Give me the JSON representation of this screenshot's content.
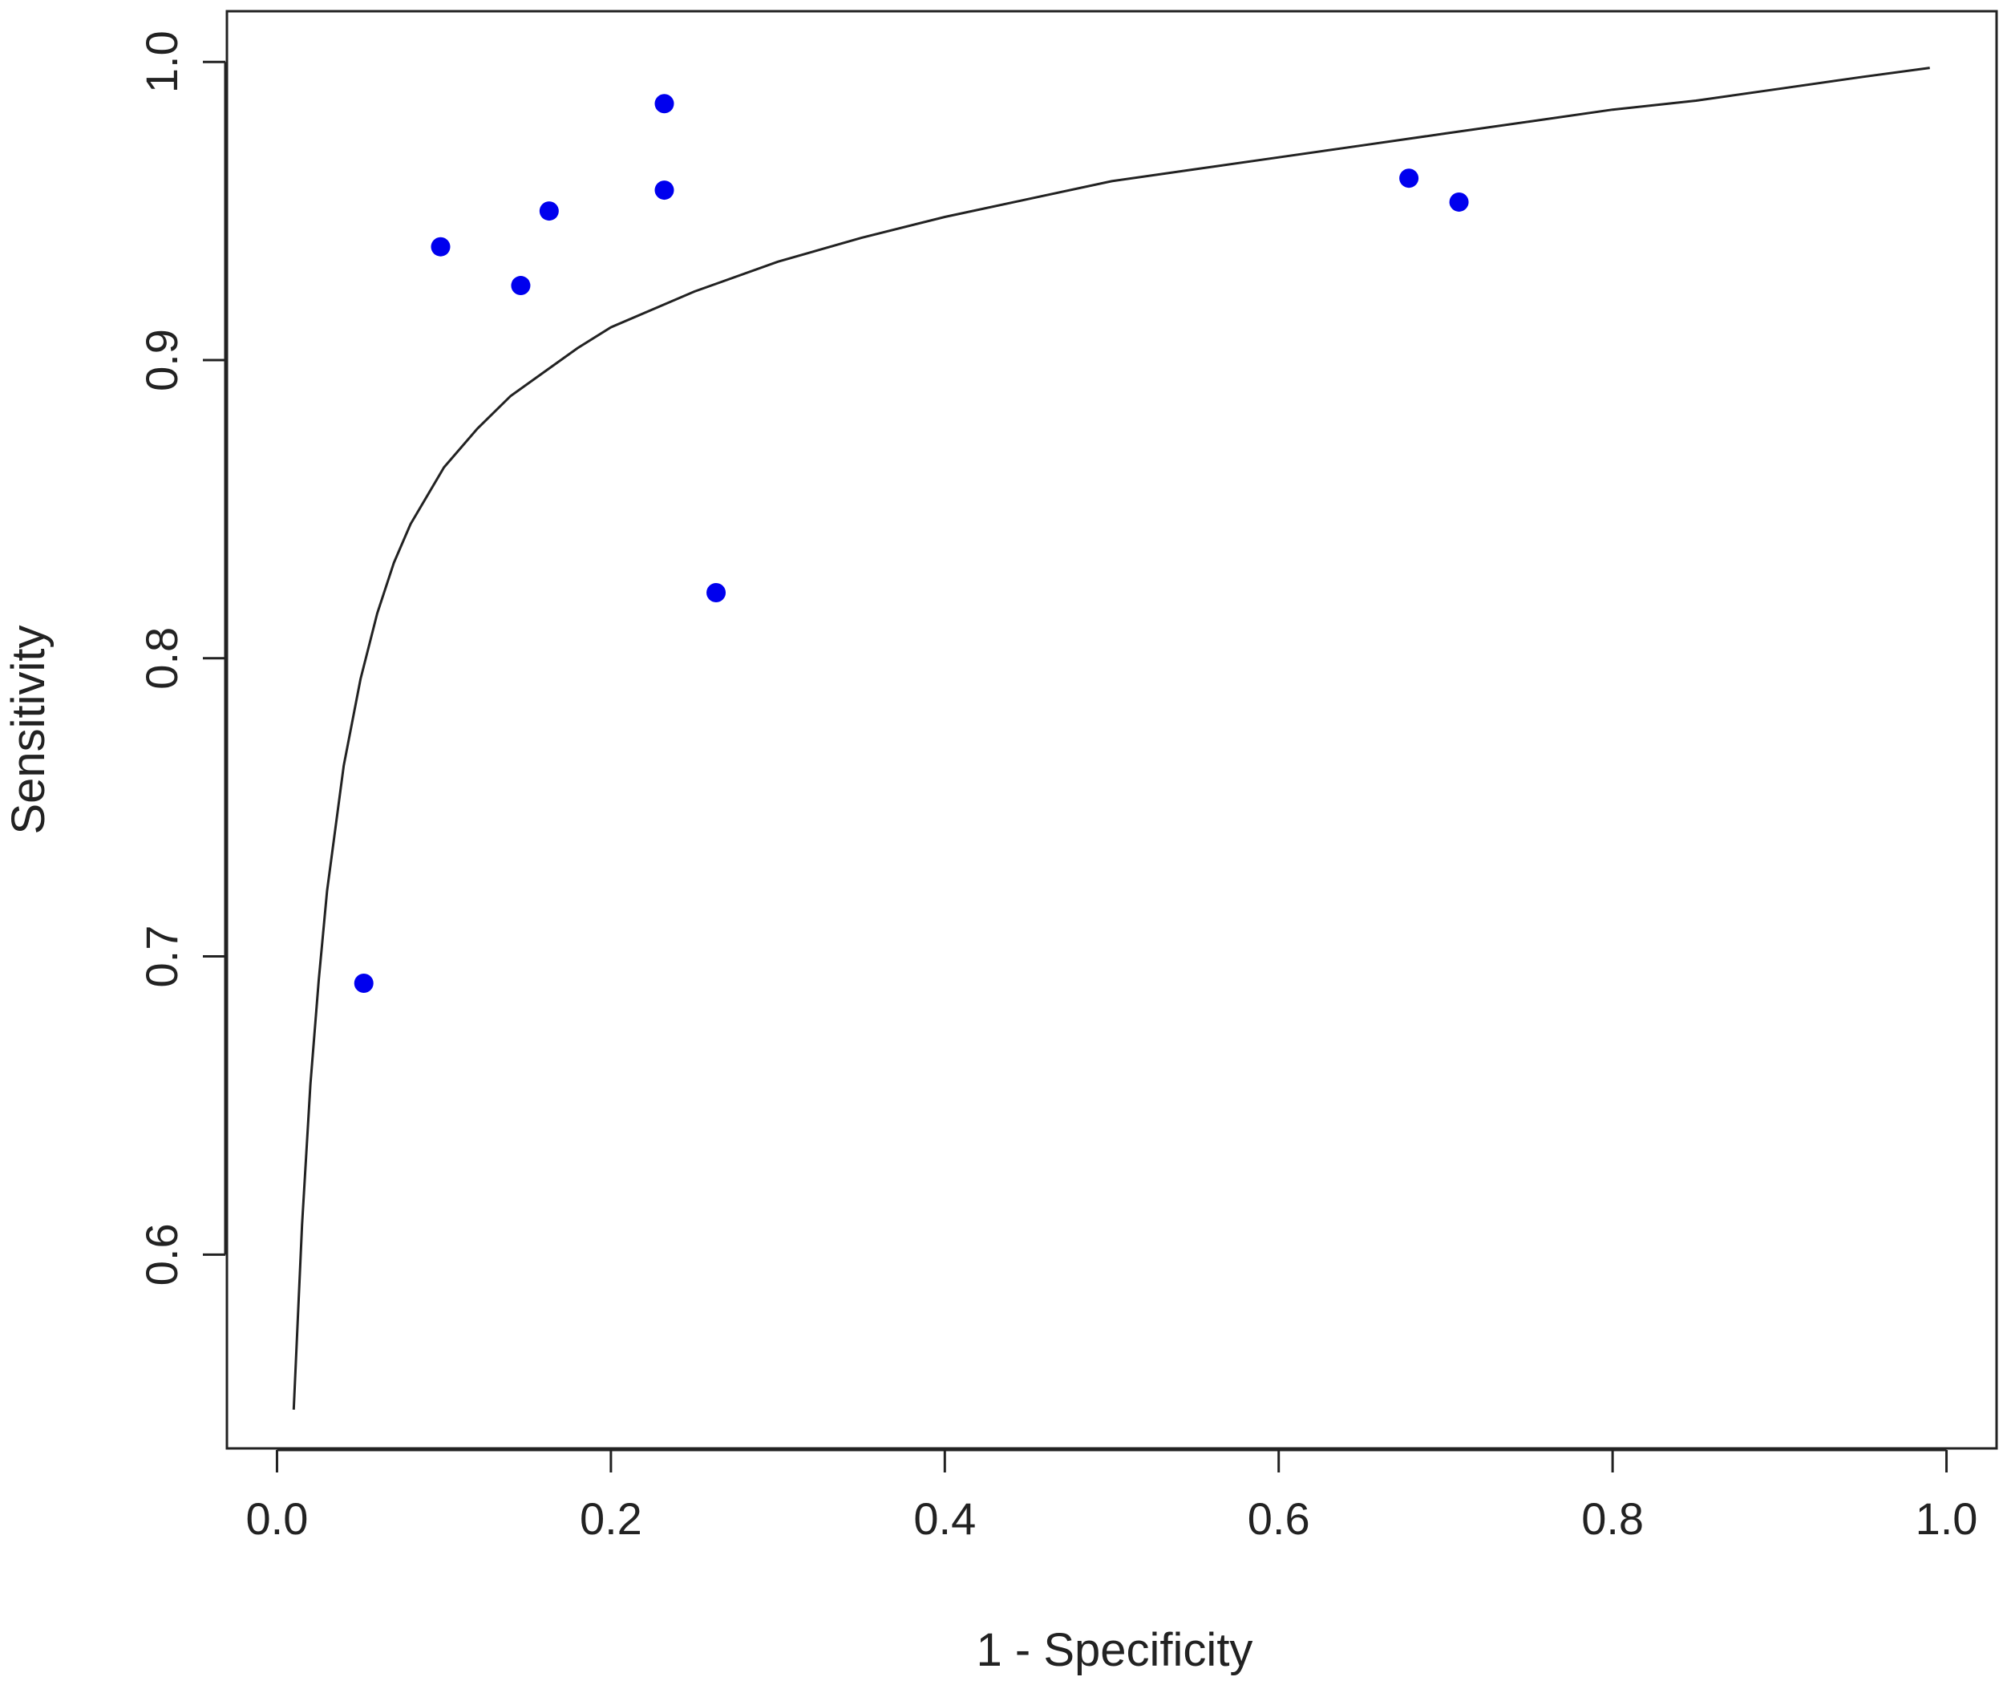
{
  "chart_data": {
    "type": "scatter",
    "title": "",
    "xlabel": "1 - Specificity",
    "ylabel": "Sensitivity",
    "xlim": [
      -0.03,
      1.03
    ],
    "ylim": [
      0.535,
      1.017
    ],
    "grid": false,
    "legend": "none",
    "x_ticks": [
      {
        "value": 0.0,
        "label": "0.0"
      },
      {
        "value": 0.2,
        "label": "0.2"
      },
      {
        "value": 0.4,
        "label": "0.4"
      },
      {
        "value": 0.6,
        "label": "0.6"
      },
      {
        "value": 0.8,
        "label": "0.8"
      },
      {
        "value": 1.0,
        "label": "1.0"
      }
    ],
    "y_ticks": [
      {
        "value": 0.6,
        "label": "0.6"
      },
      {
        "value": 0.7,
        "label": "0.7"
      },
      {
        "value": 0.8,
        "label": "0.8"
      },
      {
        "value": 0.9,
        "label": "0.9"
      },
      {
        "value": 1.0,
        "label": "1.0"
      }
    ],
    "points": [
      {
        "x": 0.052,
        "y": 0.691
      },
      {
        "x": 0.098,
        "y": 0.938
      },
      {
        "x": 0.146,
        "y": 0.925
      },
      {
        "x": 0.163,
        "y": 0.95
      },
      {
        "x": 0.232,
        "y": 0.986
      },
      {
        "x": 0.232,
        "y": 0.957
      },
      {
        "x": 0.263,
        "y": 0.822
      },
      {
        "x": 0.678,
        "y": 0.961
      },
      {
        "x": 0.708,
        "y": 0.953
      }
    ],
    "curve": [
      {
        "x": 0.01,
        "y": 0.548
      },
      {
        "x": 0.015,
        "y": 0.61
      },
      {
        "x": 0.02,
        "y": 0.657
      },
      {
        "x": 0.025,
        "y": 0.692
      },
      {
        "x": 0.03,
        "y": 0.722
      },
      {
        "x": 0.04,
        "y": 0.764
      },
      {
        "x": 0.05,
        "y": 0.793
      },
      {
        "x": 0.06,
        "y": 0.815
      },
      {
        "x": 0.07,
        "y": 0.832
      },
      {
        "x": 0.08,
        "y": 0.845
      },
      {
        "x": 0.1,
        "y": 0.864
      },
      {
        "x": 0.12,
        "y": 0.877
      },
      {
        "x": 0.14,
        "y": 0.888
      },
      {
        "x": 0.16,
        "y": 0.896
      },
      {
        "x": 0.18,
        "y": 0.904
      },
      {
        "x": 0.2,
        "y": 0.911
      },
      {
        "x": 0.25,
        "y": 0.923
      },
      {
        "x": 0.3,
        "y": 0.933
      },
      {
        "x": 0.35,
        "y": 0.941
      },
      {
        "x": 0.4,
        "y": 0.948
      },
      {
        "x": 0.45,
        "y": 0.954
      },
      {
        "x": 0.5,
        "y": 0.96
      },
      {
        "x": 0.55,
        "y": 0.964
      },
      {
        "x": 0.6,
        "y": 0.968
      },
      {
        "x": 0.65,
        "y": 0.972
      },
      {
        "x": 0.7,
        "y": 0.976
      },
      {
        "x": 0.75,
        "y": 0.98
      },
      {
        "x": 0.8,
        "y": 0.984
      },
      {
        "x": 0.85,
        "y": 0.987
      },
      {
        "x": 0.9,
        "y": 0.991
      },
      {
        "x": 0.95,
        "y": 0.995
      },
      {
        "x": 0.99,
        "y": 0.998
      }
    ],
    "point_color": "#0000ee",
    "curve_color": "#222222"
  }
}
